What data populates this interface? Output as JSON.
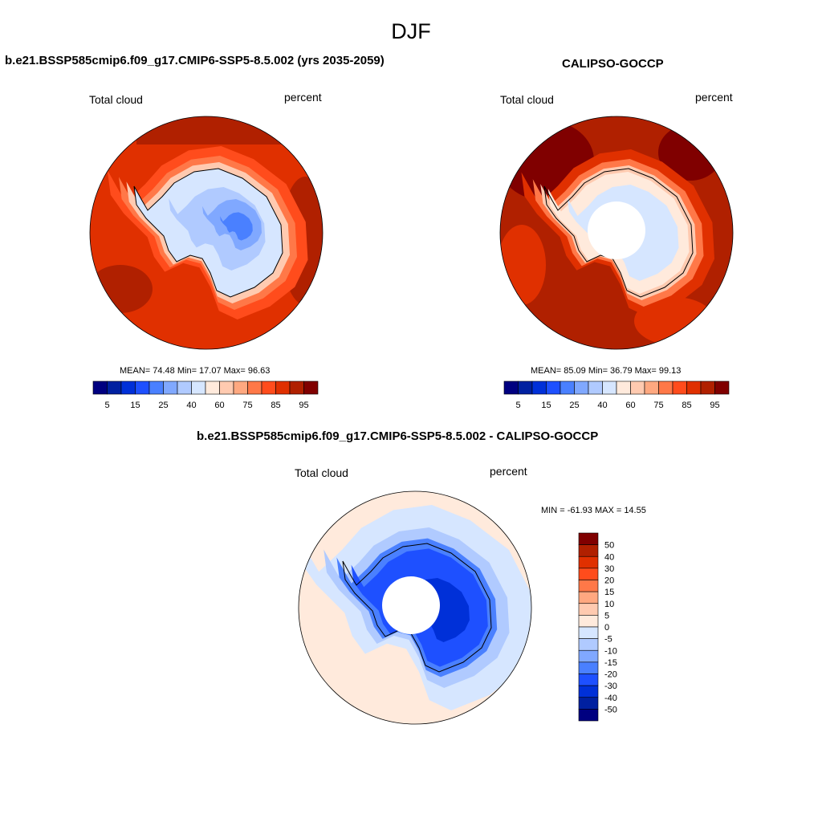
{
  "title": "DJF",
  "panels": [
    {
      "title": "b.e21.BSSP585cmip6.f09_g17.CMIP6-SSP5-8.5.002 (yrs 2035-2059)",
      "left_label": "Total cloud",
      "right_label": "percent",
      "stats": "MEAN=  74.48  Min=  17.07  Max=  96.63"
    },
    {
      "title": "CALIPSO-GOCCP",
      "left_label": "Total cloud",
      "right_label": "percent",
      "stats": "MEAN=  85.09  Min=  36.79  Max=  99.13"
    },
    {
      "title": "b.e21.BSSP585cmip6.f09_g17.CMIP6-SSP5-8.5.002 - CALIPSO-GOCCP",
      "left_label": "Total cloud",
      "right_label": "percent",
      "stats": "MIN = -61.93 MAX =  14.55"
    }
  ],
  "chart_data": {
    "type": "heatmap",
    "projection": "south polar stereographic",
    "field_colorbar": {
      "colors": [
        "#000080",
        "#0020a0",
        "#0030d8",
        "#1e50ff",
        "#4a80ff",
        "#80a8ff",
        "#b0caff",
        "#d6e6ff",
        "#ffeadc",
        "#ffcab0",
        "#ffa880",
        "#ff7848",
        "#ff4c1c",
        "#e03000",
        "#b02000",
        "#800000"
      ],
      "tick_labels": [
        "5",
        "15",
        "25",
        "40",
        "60",
        "75",
        "85",
        "95"
      ]
    },
    "diff_colorbar": {
      "colors": [
        "#800000",
        "#b02000",
        "#e03000",
        "#ff4c1c",
        "#ff7848",
        "#ffa880",
        "#ffcab0",
        "#ffeadc",
        "#d6e6ff",
        "#b0caff",
        "#80a8ff",
        "#4a80ff",
        "#1e50ff",
        "#0030d8",
        "#0020a0",
        "#000080"
      ],
      "tick_labels": [
        "50",
        "40",
        "30",
        "20",
        "15",
        "10",
        "5",
        "0",
        "-5",
        "-10",
        "-15",
        "-20",
        "-30",
        "-40",
        "-50"
      ]
    }
  }
}
